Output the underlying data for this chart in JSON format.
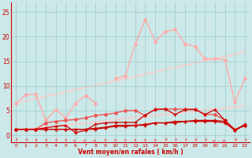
{
  "x": [
    0,
    1,
    2,
    3,
    4,
    5,
    6,
    7,
    8,
    9,
    10,
    11,
    12,
    13,
    14,
    15,
    16,
    17,
    18,
    19,
    20,
    21,
    22,
    23
  ],
  "trend_upper": [
    6.5,
    7.0,
    7.4,
    7.9,
    8.3,
    8.8,
    9.2,
    9.7,
    10.1,
    10.6,
    11.0,
    11.5,
    11.9,
    12.4,
    12.8,
    13.3,
    13.7,
    14.2,
    14.6,
    15.1,
    15.5,
    16.0,
    16.4,
    16.9
  ],
  "trend_lower": [
    1.0,
    1.2,
    1.4,
    1.6,
    1.8,
    2.1,
    2.3,
    2.5,
    2.7,
    2.9,
    3.1,
    3.4,
    3.6,
    3.8,
    4.0,
    4.2,
    4.4,
    4.7,
    4.9,
    5.1,
    5.3,
    5.5,
    5.7,
    6.0
  ],
  "spiky_upper": [
    6.5,
    8.2,
    8.3,
    3.0,
    5.2,
    3.5,
    6.5,
    8.1,
    6.5,
    null,
    null,
    null,
    null,
    null,
    null,
    null,
    null,
    null,
    null,
    null,
    null,
    null,
    null,
    null
  ],
  "spiky_mid": [
    null,
    null,
    null,
    null,
    null,
    null,
    null,
    null,
    null,
    null,
    11.5,
    12.0,
    18.5,
    23.5,
    19.0,
    21.0,
    21.5,
    18.5,
    18.0,
    15.5,
    15.5,
    15.3,
    6.7,
    11.5
  ],
  "line_mid": [
    1.2,
    1.2,
    1.2,
    2.5,
    2.8,
    3.0,
    3.2,
    3.5,
    4.0,
    4.2,
    4.5,
    5.0,
    5.0,
    4.0,
    5.3,
    5.3,
    5.3,
    5.3,
    5.3,
    4.2,
    4.2,
    3.0,
    1.2,
    2.0
  ],
  "line_red1": [
    1.2,
    1.2,
    1.2,
    1.5,
    1.8,
    2.0,
    0.5,
    1.0,
    2.2,
    2.5,
    2.6,
    2.6,
    2.6,
    4.1,
    5.2,
    5.3,
    4.2,
    5.2,
    5.2,
    4.2,
    5.2,
    3.0,
    1.0,
    2.2
  ],
  "line_red2": [
    1.2,
    1.2,
    1.2,
    1.2,
    1.2,
    1.2,
    1.2,
    1.2,
    1.4,
    1.6,
    2.0,
    2.0,
    2.0,
    2.0,
    2.5,
    2.5,
    2.5,
    2.8,
    2.8,
    2.8,
    2.8,
    2.5,
    1.0,
    2.0
  ],
  "line_red3": [
    1.2,
    1.2,
    1.2,
    1.2,
    1.2,
    1.2,
    1.2,
    1.2,
    1.2,
    1.5,
    1.8,
    1.8,
    2.0,
    2.2,
    2.5,
    2.5,
    2.8,
    2.8,
    3.0,
    3.0,
    3.0,
    2.8,
    1.0,
    2.0
  ],
  "background_color": "#cce8e8",
  "grid_color": "#99cccc",
  "color_dark": "#cc0000",
  "color_mid": "#ee5555",
  "color_light": "#ffaaaa",
  "color_vlight": "#ffcccc",
  "ylabel_ticks": [
    0,
    5,
    10,
    15,
    20,
    25
  ],
  "xlabel": "Vent moyen/en rafales ( km/h )",
  "ylim": [
    -1.5,
    27
  ],
  "xlim": [
    -0.5,
    23.5
  ]
}
